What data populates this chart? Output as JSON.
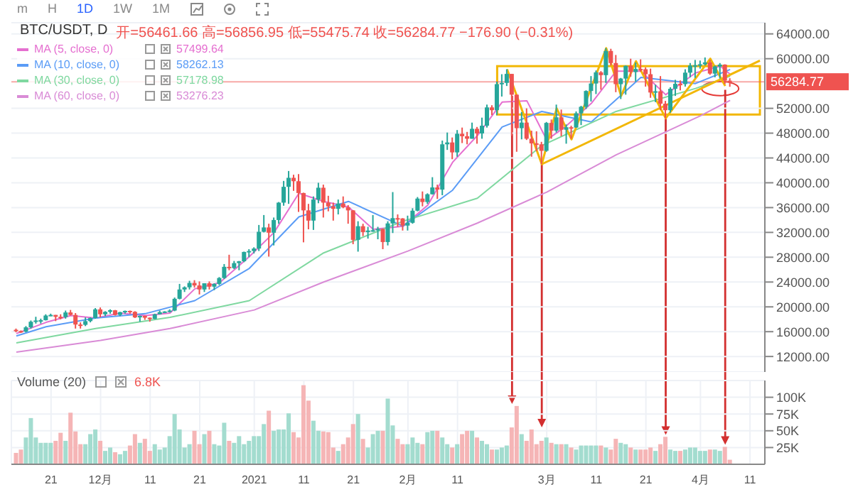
{
  "chart_data": [
    {
      "type": "candlestick",
      "title": "BTC/USDT, D",
      "x": [
        "2020-11-14",
        "2020-11-15",
        "2020-11-16",
        "2020-11-17",
        "2020-11-18",
        "2020-11-19",
        "2020-11-20",
        "2020-11-21",
        "2020-11-22",
        "2020-11-23",
        "2020-11-24",
        "2020-11-25",
        "2020-11-26",
        "2020-11-27",
        "2020-11-28",
        "2020-11-29",
        "2020-11-30",
        "2020-12-01",
        "2020-12-02",
        "2020-12-03",
        "2020-12-04",
        "2020-12-05",
        "2020-12-06",
        "2020-12-07",
        "2020-12-08",
        "2020-12-09",
        "2020-12-10",
        "2020-12-11",
        "2020-12-12",
        "2020-12-13",
        "2020-12-14",
        "2020-12-15",
        "2020-12-16",
        "2020-12-17",
        "2020-12-18",
        "2020-12-19",
        "2020-12-20",
        "2020-12-21",
        "2020-12-22",
        "2020-12-23",
        "2020-12-24",
        "2020-12-25",
        "2020-12-26",
        "2020-12-27",
        "2020-12-28",
        "2020-12-29",
        "2020-12-30",
        "2020-12-31",
        "2021-01-01",
        "2021-01-02",
        "2021-01-03",
        "2021-01-04",
        "2021-01-05",
        "2021-01-06",
        "2021-01-07",
        "2021-01-08",
        "2021-01-09",
        "2021-01-10",
        "2021-01-11",
        "2021-01-12",
        "2021-01-13",
        "2021-01-14",
        "2021-01-15",
        "2021-01-16",
        "2021-01-17",
        "2021-01-18",
        "2021-01-19",
        "2021-01-20",
        "2021-01-21",
        "2021-01-22",
        "2021-01-23",
        "2021-01-24",
        "2021-01-25",
        "2021-01-26",
        "2021-01-27",
        "2021-01-28",
        "2021-01-29",
        "2021-01-30",
        "2021-01-31",
        "2021-02-01",
        "2021-02-02",
        "2021-02-03",
        "2021-02-04",
        "2021-02-05",
        "2021-02-06",
        "2021-02-07",
        "2021-02-08",
        "2021-02-09",
        "2021-02-10",
        "2021-02-11",
        "2021-02-12",
        "2021-02-13",
        "2021-02-14",
        "2021-02-15",
        "2021-02-16",
        "2021-02-17",
        "2021-02-18",
        "2021-02-19",
        "2021-02-20",
        "2021-02-21",
        "2021-02-22",
        "2021-02-23",
        "2021-02-24",
        "2021-02-25",
        "2021-02-26",
        "2021-02-27",
        "2021-02-28",
        "2021-03-01",
        "2021-03-02",
        "2021-03-03",
        "2021-03-04",
        "2021-03-05",
        "2021-03-06",
        "2021-03-07",
        "2021-03-08",
        "2021-03-09",
        "2021-03-10",
        "2021-03-11",
        "2021-03-12",
        "2021-03-13",
        "2021-03-14",
        "2021-03-15",
        "2021-03-16",
        "2021-03-17",
        "2021-03-18",
        "2021-03-19",
        "2021-03-20",
        "2021-03-21",
        "2021-03-22",
        "2021-03-23",
        "2021-03-24",
        "2021-03-25",
        "2021-03-26",
        "2021-03-27",
        "2021-03-28",
        "2021-03-29",
        "2021-03-30",
        "2021-03-31",
        "2021-04-01",
        "2021-04-02",
        "2021-04-03",
        "2021-04-04",
        "2021-04-05",
        "2021-04-06",
        "2021-04-07"
      ],
      "ohlc": [
        [
          16300,
          16500,
          15900,
          16100
        ],
        [
          16100,
          16200,
          15800,
          16000
        ],
        [
          16000,
          16900,
          15900,
          16700
        ],
        [
          16700,
          17800,
          16500,
          17600
        ],
        [
          17600,
          18400,
          17300,
          17800
        ],
        [
          17800,
          18100,
          17300,
          17850
        ],
        [
          17850,
          18800,
          17800,
          18600
        ],
        [
          18600,
          18900,
          18500,
          18700
        ],
        [
          18700,
          18700,
          17700,
          18400
        ],
        [
          18400,
          18800,
          18000,
          18350
        ],
        [
          18350,
          19400,
          18100,
          19100
        ],
        [
          19100,
          19500,
          18600,
          18700
        ],
        [
          18700,
          19000,
          16500,
          17150
        ],
        [
          17150,
          17500,
          16500,
          17100
        ],
        [
          17100,
          18300,
          16900,
          17700
        ],
        [
          17700,
          18300,
          17500,
          18200
        ],
        [
          18200,
          19800,
          18100,
          19600
        ],
        [
          19600,
          19900,
          18300,
          18800
        ],
        [
          18800,
          19300,
          18500,
          19200
        ],
        [
          19200,
          19600,
          18900,
          19450
        ],
        [
          19450,
          19500,
          18600,
          18700
        ],
        [
          18700,
          19200,
          18500,
          19150
        ],
        [
          19150,
          19400,
          18900,
          19350
        ],
        [
          19350,
          19400,
          18900,
          19200
        ],
        [
          19200,
          19300,
          18200,
          18300
        ],
        [
          18300,
          18600,
          17600,
          18550
        ],
        [
          18550,
          18600,
          17900,
          18250
        ],
        [
          18250,
          18300,
          17600,
          18050
        ],
        [
          18050,
          18900,
          18000,
          18800
        ],
        [
          18800,
          19400,
          18800,
          19150
        ],
        [
          19150,
          19300,
          19000,
          19250
        ],
        [
          19250,
          19600,
          19100,
          19400
        ],
        [
          19400,
          21500,
          19300,
          21300
        ],
        [
          21300,
          23700,
          21200,
          22800
        ],
        [
          22800,
          23300,
          22400,
          23150
        ],
        [
          23150,
          24200,
          22800,
          23850
        ],
        [
          23850,
          24300,
          23100,
          23450
        ],
        [
          23450,
          24100,
          22000,
          22800
        ],
        [
          22800,
          23800,
          22400,
          23800
        ],
        [
          23800,
          24100,
          22800,
          23250
        ],
        [
          23250,
          23800,
          22700,
          23700
        ],
        [
          23700,
          24800,
          23500,
          24650
        ],
        [
          24650,
          26900,
          24500,
          26450
        ],
        [
          26450,
          28400,
          25900,
          26250
        ],
        [
          26250,
          27400,
          26100,
          27050
        ],
        [
          27050,
          27400,
          25900,
          27350
        ],
        [
          27350,
          28900,
          27200,
          28850
        ],
        [
          28850,
          29300,
          28000,
          29000
        ],
        [
          29000,
          29600,
          28600,
          29400
        ],
        [
          29400,
          33200,
          29000,
          32100
        ],
        [
          32100,
          34800,
          32000,
          32800
        ],
        [
          32800,
          33400,
          28100,
          31950
        ],
        [
          31950,
          34400,
          29900,
          34000
        ],
        [
          34000,
          36900,
          33400,
          36800
        ],
        [
          36800,
          40300,
          36300,
          39350
        ],
        [
          39350,
          41900,
          36600,
          40800
        ],
        [
          40800,
          41300,
          38700,
          40250
        ],
        [
          40250,
          41400,
          35300,
          38350
        ],
        [
          38350,
          38400,
          30400,
          35550
        ],
        [
          35550,
          36600,
          32500,
          33900
        ],
        [
          33900,
          37800,
          32400,
          37300
        ],
        [
          37300,
          40000,
          36700,
          39200
        ],
        [
          39200,
          39700,
          34400,
          36800
        ],
        [
          36800,
          37900,
          35400,
          36200
        ],
        [
          36200,
          36800,
          33900,
          35800
        ],
        [
          35800,
          37300,
          34900,
          36650
        ],
        [
          36650,
          37800,
          35900,
          36050
        ],
        [
          36050,
          36400,
          33400,
          35550
        ],
        [
          35550,
          35600,
          30100,
          30800
        ],
        [
          30800,
          33800,
          28900,
          33000
        ],
        [
          33000,
          33400,
          31400,
          32050
        ],
        [
          32050,
          32900,
          31000,
          32300
        ],
        [
          32300,
          34800,
          32100,
          32350
        ],
        [
          32350,
          32900,
          30900,
          32550
        ],
        [
          32550,
          32600,
          29300,
          30450
        ],
        [
          30450,
          33800,
          29900,
          33450
        ],
        [
          33450,
          38500,
          31900,
          34300
        ],
        [
          34300,
          34900,
          32900,
          34250
        ],
        [
          34250,
          34300,
          32300,
          33100
        ],
        [
          33100,
          34700,
          32300,
          33550
        ],
        [
          33550,
          35900,
          33400,
          35500
        ],
        [
          35500,
          37700,
          35400,
          37450
        ],
        [
          37450,
          38600,
          36200,
          36900
        ],
        [
          36900,
          38300,
          36600,
          38150
        ],
        [
          38150,
          40900,
          38100,
          39250
        ],
        [
          39250,
          39700,
          37400,
          38900
        ],
        [
          38900,
          46800,
          38000,
          46200
        ],
        [
          46200,
          48100,
          45300,
          46500
        ],
        [
          46500,
          47300,
          43800,
          44900
        ],
        [
          44900,
          48500,
          44200,
          47900
        ],
        [
          47900,
          48900,
          46400,
          47500
        ],
        [
          47500,
          48200,
          46200,
          47100
        ],
        [
          47100,
          49700,
          47100,
          48700
        ],
        [
          48700,
          49000,
          46300,
          47950
        ],
        [
          47950,
          50500,
          47100,
          49200
        ],
        [
          49200,
          52600,
          48900,
          52150
        ],
        [
          52150,
          52500,
          50900,
          51700
        ],
        [
          51700,
          56300,
          50900,
          55900
        ],
        [
          55900,
          57500,
          53900,
          56100
        ],
        [
          56100,
          58300,
          55600,
          57550
        ],
        [
          57550,
          57550,
          47600,
          54200
        ],
        [
          54200,
          54200,
          45000,
          48800
        ],
        [
          48800,
          51400,
          47000,
          49700
        ],
        [
          49700,
          52000,
          46900,
          47100
        ],
        [
          47100,
          48400,
          44200,
          46350
        ],
        [
          46350,
          48300,
          45100,
          46200
        ],
        [
          46200,
          46600,
          43000,
          45150
        ],
        [
          45150,
          49800,
          45000,
          49650
        ],
        [
          49650,
          50200,
          47100,
          48400
        ],
        [
          48400,
          52600,
          48100,
          50550
        ],
        [
          50550,
          51800,
          47500,
          48550
        ],
        [
          48550,
          49400,
          46300,
          48950
        ],
        [
          48950,
          49200,
          47100,
          48900
        ],
        [
          48900,
          51500,
          48900,
          51200
        ],
        [
          51200,
          52400,
          49300,
          52250
        ],
        [
          52250,
          54900,
          51900,
          54800
        ],
        [
          54800,
          57200,
          53100,
          56000
        ],
        [
          56000,
          58100,
          54300,
          57800
        ],
        [
          57800,
          58000,
          55000,
          57350
        ],
        [
          57350,
          61700,
          56100,
          61250
        ],
        [
          61250,
          61600,
          58900,
          59300
        ],
        [
          59300,
          60600,
          54600,
          55900
        ],
        [
          55900,
          56900,
          53500,
          56800
        ],
        [
          56800,
          58900,
          54200,
          58850
        ],
        [
          58850,
          60000,
          57100,
          57850
        ],
        [
          57850,
          59400,
          56300,
          58350
        ],
        [
          58350,
          59900,
          57900,
          58300
        ],
        [
          58300,
          58600,
          55500,
          57500
        ],
        [
          57500,
          58400,
          53700,
          54550
        ],
        [
          54550,
          55800,
          53000,
          54750
        ],
        [
          54750,
          57200,
          51700,
          52750
        ],
        [
          52750,
          53200,
          50400,
          51700
        ],
        [
          51700,
          55400,
          51300,
          55150
        ],
        [
          55150,
          56600,
          54000,
          55950
        ],
        [
          55950,
          56500,
          54900,
          55900
        ],
        [
          55900,
          58300,
          55500,
          57750
        ],
        [
          57750,
          59300,
          57000,
          58900
        ],
        [
          58900,
          59800,
          56900,
          58950
        ],
        [
          58950,
          59700,
          58400,
          59100
        ],
        [
          59100,
          60200,
          58900,
          59400
        ],
        [
          59400,
          59800,
          57400,
          57600
        ],
        [
          57600,
          58900,
          57000,
          58750
        ],
        [
          58750,
          59300,
          56800,
          59050
        ],
        [
          59050,
          59100,
          55900,
          56461.66
        ],
        [
          56461.66,
          56856.95,
          55475.74,
          56284.77
        ]
      ],
      "colors": [
        "#ef5350",
        "#ef5350",
        "#26a69a",
        "#26a69a",
        "#26a69a",
        "#26a69a",
        "#26a69a",
        "#26a69a",
        "#ef5350",
        "#ef5350",
        "#26a69a",
        "#ef5350",
        "#ef5350",
        "#ef5350",
        "#26a69a",
        "#26a69a",
        "#26a69a",
        "#ef5350",
        "#26a69a",
        "#26a69a",
        "#ef5350",
        "#26a69a",
        "#26a69a",
        "#ef5350",
        "#ef5350",
        "#26a69a",
        "#ef5350",
        "#ef5350",
        "#26a69a",
        "#26a69a",
        "#26a69a",
        "#26a69a",
        "#26a69a",
        "#26a69a",
        "#26a69a",
        "#26a69a",
        "#ef5350",
        "#ef5350",
        "#26a69a",
        "#ef5350",
        "#26a69a",
        "#26a69a",
        "#26a69a",
        "#ef5350",
        "#26a69a",
        "#26a69a",
        "#26a69a",
        "#26a69a",
        "#26a69a",
        "#26a69a",
        "#26a69a",
        "#ef5350",
        "#26a69a",
        "#26a69a",
        "#26a69a",
        "#26a69a",
        "#ef5350",
        "#ef5350",
        "#ef5350",
        "#ef5350",
        "#26a69a",
        "#26a69a",
        "#ef5350",
        "#ef5350",
        "#ef5350",
        "#26a69a",
        "#ef5350",
        "#ef5350",
        "#ef5350",
        "#26a69a",
        "#ef5350",
        "#26a69a",
        "#26a69a",
        "#26a69a",
        "#ef5350",
        "#26a69a",
        "#26a69a",
        "#ef5350",
        "#ef5350",
        "#26a69a",
        "#26a69a",
        "#26a69a",
        "#ef5350",
        "#26a69a",
        "#26a69a",
        "#ef5350",
        "#26a69a",
        "#26a69a",
        "#ef5350",
        "#26a69a",
        "#ef5350",
        "#ef5350",
        "#26a69a",
        "#ef5350",
        "#26a69a",
        "#26a69a",
        "#ef5350",
        "#26a69a",
        "#26a69a",
        "#26a69a",
        "#ef5350",
        "#ef5350",
        "#26a69a",
        "#ef5350",
        "#ef5350",
        "#ef5350",
        "#ef5350",
        "#26a69a",
        "#ef5350",
        "#26a69a",
        "#ef5350",
        "#26a69a",
        "#ef5350",
        "#26a69a",
        "#26a69a",
        "#26a69a",
        "#26a69a",
        "#26a69a",
        "#ef5350",
        "#26a69a",
        "#ef5350",
        "#ef5350",
        "#26a69a",
        "#26a69a",
        "#ef5350",
        "#26a69a",
        "#ef5350",
        "#ef5350",
        "#ef5350",
        "#26a69a",
        "#ef5350",
        "#ef5350",
        "#26a69a",
        "#26a69a",
        "#ef5350",
        "#26a69a",
        "#26a69a",
        "#26a69a",
        "#26a69a",
        "#26a69a",
        "#ef5350",
        "#26a69a",
        "#26a69a",
        "#ef5350",
        "#ef5350"
      ],
      "series": [
        {
          "type": "line",
          "name": "MA (5, close, 0)",
          "color": "#e56fd0",
          "x": [
            "2020-11-14",
            "2020-11-20",
            "2020-11-25",
            "2020-11-30",
            "2020-12-05",
            "2020-12-10",
            "2020-12-15",
            "2020-12-20",
            "2020-12-25",
            "2020-12-31",
            "2021-01-05",
            "2021-01-10",
            "2021-01-15",
            "2021-01-20",
            "2021-01-25",
            "2021-01-31",
            "2021-02-05",
            "2021-02-10",
            "2021-02-15",
            "2021-02-20",
            "2021-02-25",
            "2021-03-01",
            "2021-03-05",
            "2021-03-10",
            "2021-03-15",
            "2021-03-20",
            "2021-03-25",
            "2021-03-31",
            "2021-04-05",
            "2021-04-07"
          ],
          "values": [
            15700,
            17500,
            18600,
            18200,
            19000,
            18600,
            19000,
            22900,
            23900,
            28100,
            32000,
            38300,
            37000,
            36100,
            32500,
            33000,
            36400,
            43300,
            47600,
            53000,
            53200,
            46900,
            49200,
            52800,
            58000,
            58000,
            54200,
            57700,
            58800,
            57499.64
          ]
        },
        {
          "type": "line",
          "name": "MA (10, close, 0)",
          "color": "#5b9cf6",
          "x": [
            "2020-11-14",
            "2020-11-20",
            "2020-11-30",
            "2020-12-10",
            "2020-12-20",
            "2020-12-31",
            "2021-01-10",
            "2021-01-20",
            "2021-01-31",
            "2021-02-10",
            "2021-02-20",
            "2021-02-28",
            "2021-03-10",
            "2021-03-20",
            "2021-03-31",
            "2021-04-07"
          ],
          "values": [
            15300,
            16800,
            18200,
            18900,
            21000,
            26200,
            34500,
            37000,
            33000,
            38800,
            49000,
            51500,
            49800,
            57000,
            56000,
            58262.13
          ]
        },
        {
          "type": "line",
          "name": "MA (30, close, 0)",
          "color": "#7fd8a0",
          "x": [
            "2020-11-14",
            "2020-11-30",
            "2020-12-15",
            "2020-12-31",
            "2021-01-15",
            "2021-01-31",
            "2021-02-15",
            "2021-02-28",
            "2021-03-15",
            "2021-03-31",
            "2021-04-07"
          ],
          "values": [
            14200,
            16500,
            18300,
            21000,
            28700,
            33800,
            37500,
            46000,
            51500,
            55200,
            57178.98
          ]
        },
        {
          "type": "line",
          "name": "MA (60, close, 0)",
          "color": "#d98bd6",
          "x": [
            "2020-11-14",
            "2020-12-01",
            "2020-12-15",
            "2021-01-01",
            "2021-01-15",
            "2021-02-01",
            "2021-02-15",
            "2021-03-01",
            "2021-03-15",
            "2021-04-01",
            "2021-04-07"
          ],
          "values": [
            12700,
            14600,
            16500,
            19500,
            24000,
            29000,
            33500,
            38500,
            44500,
            50800,
            53276.23
          ]
        },
        {
          "type": "line",
          "color": "#f2b705",
          "x": [
            "2021-02-21",
            "2021-02-28",
            "2021-03-03",
            "2021-03-06",
            "2021-03-13",
            "2021-03-16",
            "2021-03-19",
            "2021-03-25",
            "2021-04-03",
            "2021-04-06"
          ],
          "values": [
            58300,
            43000,
            52000,
            47000,
            61700,
            54000,
            59600,
            50400,
            60000,
            55600
          ]
        },
        {
          "type": "line",
          "color": "#f2b705",
          "x": [
            "2021-02-28",
            "2021-04-13"
          ],
          "values": [
            43000,
            59700
          ]
        }
      ],
      "xlim": [
        "2020-11-13",
        "2021-04-14"
      ],
      "xticks": [
        {
          "value": "2020-11-21",
          "label": null
        },
        {
          "value": "2020-12-01",
          "label": null
        },
        {
          "value": "2020-12-11",
          "label": null
        },
        {
          "value": "2020-12-21",
          "label": null
        },
        {
          "value": "2021-01-01",
          "label": null
        },
        {
          "value": "2021-01-11",
          "label": null
        },
        {
          "value": "2021-01-21",
          "label": null
        },
        {
          "value": "2021-02-01",
          "label": null
        },
        {
          "value": "2021-02-11",
          "label": null
        },
        {
          "value": "2021-03-01",
          "label": null
        },
        {
          "value": "2021-03-11",
          "label": null
        },
        {
          "value": "2021-03-21",
          "label": null
        },
        {
          "value": "2021-04-01",
          "label": null
        },
        {
          "value": "2021-04-11",
          "label": null
        }
      ],
      "ylim": [
        9500,
        65800
      ],
      "yticks": [
        {
          "value": 12000,
          "label": "12000.00"
        },
        {
          "value": 16000,
          "label": "16000.00"
        },
        {
          "value": 20000,
          "label": "20000.00"
        },
        {
          "value": 24000,
          "label": "24000.00"
        },
        {
          "value": 28000,
          "label": "28000.00"
        },
        {
          "value": 32000,
          "label": "32000.00"
        },
        {
          "value": 36000,
          "label": "36000.00"
        },
        {
          "value": 40000,
          "label": "40000.00"
        },
        {
          "value": 44000,
          "label": "44000.00"
        },
        {
          "value": 48000,
          "label": "48000.00"
        },
        {
          "value": 52000,
          "label": "52000.00"
        },
        {
          "value": 60000,
          "label": "60000.00"
        },
        {
          "value": 64000,
          "label": "64000.00"
        }
      ],
      "tick_labels": "y",
      "grid": true,
      "legend": "top left",
      "ref_lines": [
        {
          "axis": "y",
          "value": 56284.77,
          "label": "56284.77",
          "color": "#ef5350"
        }
      ],
      "annotations": [
        "m",
        "H",
        "1D",
        "1W",
        "1M",
        "开=56461.66 高=56856.95 低=55475.74 收=56284.77 −176.90 (−0.31%)",
        "57499.64",
        "58262.13",
        "57178.98",
        "53276.23"
      ]
    },
    {
      "type": "bar",
      "title": "Volume (20)",
      "x": [
        "2020-11-14",
        "2020-11-15",
        "2020-11-16",
        "2020-11-17",
        "2020-11-18",
        "2020-11-19",
        "2020-11-20",
        "2020-11-21",
        "2020-11-22",
        "2020-11-23",
        "2020-11-24",
        "2020-11-25",
        "2020-11-26",
        "2020-11-27",
        "2020-11-28",
        "2020-11-29",
        "2020-11-30",
        "2020-12-01",
        "2020-12-02",
        "2020-12-03",
        "2020-12-04",
        "2020-12-05",
        "2020-12-06",
        "2020-12-07",
        "2020-12-08",
        "2020-12-09",
        "2020-12-10",
        "2020-12-11",
        "2020-12-12",
        "2020-12-13",
        "2020-12-14",
        "2020-12-15",
        "2020-12-16",
        "2020-12-17",
        "2020-12-18",
        "2020-12-19",
        "2020-12-20",
        "2020-12-21",
        "2020-12-22",
        "2020-12-23",
        "2020-12-24",
        "2020-12-25",
        "2020-12-26",
        "2020-12-27",
        "2020-12-28",
        "2020-12-29",
        "2020-12-30",
        "2020-12-31",
        "2021-01-01",
        "2021-01-02",
        "2021-01-03",
        "2021-01-04",
        "2021-01-05",
        "2021-01-06",
        "2021-01-07",
        "2021-01-08",
        "2021-01-09",
        "2021-01-10",
        "2021-01-11",
        "2021-01-12",
        "2021-01-13",
        "2021-01-14",
        "2021-01-15",
        "2021-01-16",
        "2021-01-17",
        "2021-01-18",
        "2021-01-19",
        "2021-01-20",
        "2021-01-21",
        "2021-01-22",
        "2021-01-23",
        "2021-01-24",
        "2021-01-25",
        "2021-01-26",
        "2021-01-27",
        "2021-01-28",
        "2021-01-29",
        "2021-01-30",
        "2021-01-31",
        "2021-02-01",
        "2021-02-02",
        "2021-02-03",
        "2021-02-04",
        "2021-02-05",
        "2021-02-06",
        "2021-02-07",
        "2021-02-08",
        "2021-02-09",
        "2021-02-10",
        "2021-02-11",
        "2021-02-12",
        "2021-02-13",
        "2021-02-14",
        "2021-02-15",
        "2021-02-16",
        "2021-02-17",
        "2021-02-18",
        "2021-02-19",
        "2021-02-20",
        "2021-02-21",
        "2021-02-22",
        "2021-02-23",
        "2021-02-24",
        "2021-02-25",
        "2021-02-26",
        "2021-02-27",
        "2021-02-28",
        "2021-03-01",
        "2021-03-02",
        "2021-03-03",
        "2021-03-04",
        "2021-03-05",
        "2021-03-06",
        "2021-03-07",
        "2021-03-08",
        "2021-03-09",
        "2021-03-10",
        "2021-03-11",
        "2021-03-12",
        "2021-03-13",
        "2021-03-14",
        "2021-03-15",
        "2021-03-16",
        "2021-03-17",
        "2021-03-18",
        "2021-03-19",
        "2021-03-20",
        "2021-03-21",
        "2021-03-22",
        "2021-03-23",
        "2021-03-24",
        "2021-03-25",
        "2021-03-26",
        "2021-03-27",
        "2021-03-28",
        "2021-03-29",
        "2021-03-30",
        "2021-03-31",
        "2021-04-01",
        "2021-04-02",
        "2021-04-03",
        "2021-04-04",
        "2021-04-05",
        "2021-04-06",
        "2021-04-07"
      ],
      "values": [
        17,
        22,
        40,
        69,
        40,
        32,
        32,
        32,
        35,
        47,
        35,
        77,
        49,
        30,
        30,
        45,
        52,
        35,
        20,
        25,
        18,
        15,
        20,
        28,
        45,
        32,
        38,
        20,
        30,
        22,
        25,
        42,
        75,
        52,
        25,
        30,
        50,
        30,
        45,
        50,
        30,
        28,
        62,
        35,
        32,
        42,
        30,
        35,
        42,
        42,
        60,
        80,
        50,
        52,
        52,
        76,
        48,
        40,
        118,
        95,
        65,
        50,
        49,
        48,
        25,
        20,
        30,
        40,
        60,
        75,
        38,
        25,
        45,
        50,
        50,
        98,
        58,
        38,
        30,
        30,
        40,
        32,
        30,
        48,
        50,
        50,
        40,
        30,
        25,
        30,
        45,
        50,
        50,
        40,
        35,
        30,
        22,
        22,
        25,
        28,
        55,
        87,
        45,
        35,
        52,
        30,
        35,
        40,
        32,
        30,
        30,
        30,
        25,
        22,
        28,
        28,
        28,
        28,
        28,
        25,
        22,
        38,
        32,
        30,
        25,
        22,
        22,
        22,
        25,
        20,
        30,
        41,
        22,
        20,
        20,
        22,
        25,
        25,
        20,
        20,
        22,
        22,
        20,
        26,
        6.8
      ],
      "colors": [
        "#f5b5b6",
        "#f5b5b6",
        "#a3dccf",
        "#a3dccf",
        "#a3dccf",
        "#a3dccf",
        "#a3dccf",
        "#a3dccf",
        "#f5b5b6",
        "#f5b5b6",
        "#a3dccf",
        "#f5b5b6",
        "#f5b5b6",
        "#f5b5b6",
        "#a3dccf",
        "#a3dccf",
        "#a3dccf",
        "#f5b5b6",
        "#a3dccf",
        "#a3dccf",
        "#f5b5b6",
        "#a3dccf",
        "#a3dccf",
        "#f5b5b6",
        "#f5b5b6",
        "#a3dccf",
        "#f5b5b6",
        "#f5b5b6",
        "#a3dccf",
        "#a3dccf",
        "#a3dccf",
        "#a3dccf",
        "#a3dccf",
        "#a3dccf",
        "#a3dccf",
        "#a3dccf",
        "#f5b5b6",
        "#f5b5b6",
        "#a3dccf",
        "#f5b5b6",
        "#a3dccf",
        "#a3dccf",
        "#a3dccf",
        "#f5b5b6",
        "#a3dccf",
        "#a3dccf",
        "#a3dccf",
        "#a3dccf",
        "#a3dccf",
        "#a3dccf",
        "#a3dccf",
        "#f5b5b6",
        "#a3dccf",
        "#a3dccf",
        "#a3dccf",
        "#a3dccf",
        "#f5b5b6",
        "#f5b5b6",
        "#f5b5b6",
        "#f5b5b6",
        "#a3dccf",
        "#a3dccf",
        "#f5b5b6",
        "#f5b5b6",
        "#f5b5b6",
        "#a3dccf",
        "#f5b5b6",
        "#f5b5b6",
        "#f5b5b6",
        "#a3dccf",
        "#f5b5b6",
        "#a3dccf",
        "#a3dccf",
        "#a3dccf",
        "#f5b5b6",
        "#a3dccf",
        "#a3dccf",
        "#f5b5b6",
        "#f5b5b6",
        "#a3dccf",
        "#a3dccf",
        "#a3dccf",
        "#f5b5b6",
        "#a3dccf",
        "#a3dccf",
        "#f5b5b6",
        "#a3dccf",
        "#a3dccf",
        "#f5b5b6",
        "#a3dccf",
        "#f5b5b6",
        "#f5b5b6",
        "#a3dccf",
        "#f5b5b6",
        "#a3dccf",
        "#a3dccf",
        "#f5b5b6",
        "#a3dccf",
        "#a3dccf",
        "#a3dccf",
        "#f5b5b6",
        "#f5b5b6",
        "#a3dccf",
        "#f5b5b6",
        "#f5b5b6",
        "#f5b5b6",
        "#f5b5b6",
        "#a3dccf",
        "#f5b5b6",
        "#a3dccf",
        "#f5b5b6",
        "#a3dccf",
        "#f5b5b6",
        "#a3dccf",
        "#a3dccf",
        "#a3dccf",
        "#a3dccf",
        "#a3dccf",
        "#f5b5b6",
        "#a3dccf",
        "#f5b5b6",
        "#f5b5b6",
        "#a3dccf",
        "#a3dccf",
        "#f5b5b6",
        "#a3dccf",
        "#f5b5b6",
        "#f5b5b6",
        "#f5b5b6",
        "#a3dccf",
        "#f5b5b6",
        "#f5b5b6",
        "#a3dccf",
        "#a3dccf",
        "#f5b5b6",
        "#a3dccf",
        "#a3dccf",
        "#a3dccf",
        "#a3dccf",
        "#a3dccf",
        "#f5b5b6",
        "#a3dccf",
        "#a3dccf",
        "#f5b5b6",
        "#f5b5b6"
      ],
      "xlim": [
        "2020-11-13",
        "2021-04-14"
      ],
      "xticks": [
        {
          "value": "2020-11-21",
          "label": "21"
        },
        {
          "value": "2020-12-01",
          "label": "12月"
        },
        {
          "value": "2020-12-11",
          "label": "11"
        },
        {
          "value": "2020-12-21",
          "label": "21"
        },
        {
          "value": "2021-01-01",
          "label": "2021"
        },
        {
          "value": "2021-01-11",
          "label": "11"
        },
        {
          "value": "2021-01-21",
          "label": "21"
        },
        {
          "value": "2021-02-01",
          "label": "2月"
        },
        {
          "value": "2021-02-11",
          "label": "11"
        },
        {
          "value": "2021-03-01",
          "label": "3月"
        },
        {
          "value": "2021-03-11",
          "label": "11"
        },
        {
          "value": "2021-03-21",
          "label": "21"
        },
        {
          "value": "2021-04-01",
          "label": "4月"
        },
        {
          "value": "2021-04-11",
          "label": "11"
        }
      ],
      "ylim": [
        0,
        125
      ],
      "yticks": [
        {
          "value": 25,
          "label": "25K"
        },
        {
          "value": 50,
          "label": "50K"
        },
        {
          "value": 75,
          "label": "75K"
        },
        {
          "value": 100,
          "label": "100K"
        }
      ],
      "grid": true,
      "annotations": [
        "6.8K"
      ]
    }
  ]
}
